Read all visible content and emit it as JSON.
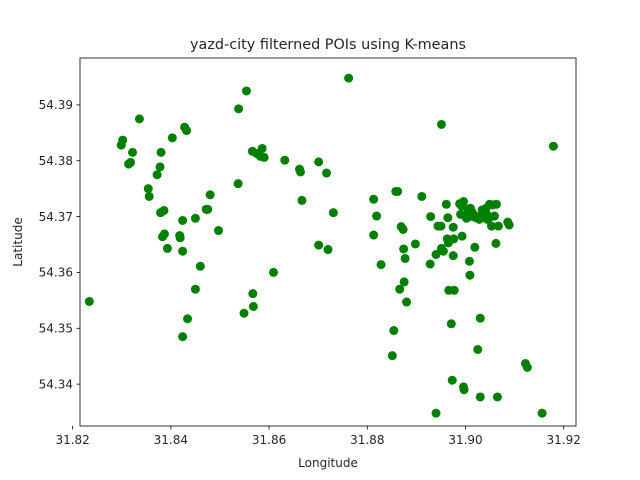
{
  "chart_data": {
    "type": "scatter",
    "title": "yazd-city filterned POIs using K-means",
    "xlabel": "Longitude",
    "ylabel": "Latitude",
    "xlim": [
      31.8215,
      31.9225
    ],
    "ylim": [
      54.3325,
      54.3984
    ],
    "xticks": [
      31.82,
      31.84,
      31.86,
      31.88,
      31.9,
      31.92
    ],
    "xtick_labels": [
      "31.82",
      "31.84",
      "31.86",
      "31.88",
      "31.90",
      "31.92"
    ],
    "yticks": [
      54.34,
      54.35,
      54.36,
      54.37,
      54.38,
      54.39
    ],
    "ytick_labels": [
      "54.34",
      "54.35",
      "54.36",
      "54.37",
      "54.38",
      "54.39"
    ],
    "grid": false,
    "marker_color": "#008000",
    "points": [
      [
        31.8234,
        54.3548
      ],
      [
        31.8299,
        54.3828
      ],
      [
        31.8302,
        54.3837
      ],
      [
        31.8314,
        54.3794
      ],
      [
        31.8318,
        54.3797
      ],
      [
        31.8322,
        54.3815
      ],
      [
        31.8336,
        54.3875
      ],
      [
        31.8354,
        54.375
      ],
      [
        31.8356,
        54.3736
      ],
      [
        31.8372,
        54.3775
      ],
      [
        31.8378,
        54.3789
      ],
      [
        31.838,
        54.3815
      ],
      [
        31.8379,
        54.3707
      ],
      [
        31.8386,
        54.3711
      ],
      [
        31.8383,
        54.3664
      ],
      [
        31.8387,
        54.3669
      ],
      [
        31.8393,
        54.3643
      ],
      [
        31.8403,
        54.3841
      ],
      [
        31.8418,
        54.3666
      ],
      [
        31.8419,
        54.3662
      ],
      [
        31.8428,
        54.386
      ],
      [
        31.8432,
        54.3854
      ],
      [
        31.8424,
        54.3693
      ],
      [
        31.8424,
        54.3638
      ],
      [
        31.8424,
        54.3485
      ],
      [
        31.8434,
        54.3517
      ],
      [
        31.845,
        54.3697
      ],
      [
        31.845,
        54.357
      ],
      [
        31.846,
        54.3611
      ],
      [
        31.8472,
        54.3713
      ],
      [
        31.8475,
        54.3713
      ],
      [
        31.848,
        54.3739
      ],
      [
        31.8497,
        54.3675
      ],
      [
        31.8538,
        54.3893
      ],
      [
        31.8537,
        54.3759
      ],
      [
        31.8549,
        54.3527
      ],
      [
        31.8554,
        54.3925
      ],
      [
        31.8566,
        54.3817
      ],
      [
        31.8567,
        54.3562
      ],
      [
        31.8568,
        54.3539
      ],
      [
        31.8575,
        54.3813
      ],
      [
        31.8582,
        54.3808
      ],
      [
        31.8586,
        54.3822
      ],
      [
        31.859,
        54.3806
      ],
      [
        31.8609,
        54.36
      ],
      [
        31.8632,
        54.3801
      ],
      [
        31.8662,
        54.3785
      ],
      [
        31.8664,
        54.378
      ],
      [
        31.8667,
        54.3729
      ],
      [
        31.8701,
        54.3798
      ],
      [
        31.8701,
        54.3649
      ],
      [
        31.8717,
        54.3778
      ],
      [
        31.872,
        54.3641
      ],
      [
        31.8731,
        54.3707
      ],
      [
        31.8762,
        54.3948
      ],
      [
        31.8813,
        54.3731
      ],
      [
        31.8813,
        54.3667
      ],
      [
        31.8819,
        54.3701
      ],
      [
        31.8828,
        54.3614
      ],
      [
        31.8851,
        54.3451
      ],
      [
        31.8854,
        54.3496
      ],
      [
        31.8858,
        54.3745
      ],
      [
        31.8862,
        54.3745
      ],
      [
        31.8866,
        54.357
      ],
      [
        31.8869,
        54.3682
      ],
      [
        31.8873,
        54.3677
      ],
      [
        31.8874,
        54.3642
      ],
      [
        31.8875,
        54.3583
      ],
      [
        31.8877,
        54.3625
      ],
      [
        31.888,
        54.3547
      ],
      [
        31.8898,
        54.3651
      ],
      [
        31.8911,
        54.3736
      ],
      [
        31.8928,
        54.3615
      ],
      [
        31.8929,
        54.37
      ],
      [
        31.894,
        54.3632
      ],
      [
        31.894,
        54.3348
      ],
      [
        31.8944,
        54.3683
      ],
      [
        31.8951,
        54.3865
      ],
      [
        31.895,
        54.3683
      ],
      [
        31.8951,
        54.3643
      ],
      [
        31.8955,
        54.3638
      ],
      [
        31.8961,
        54.3722
      ],
      [
        31.8964,
        54.3698
      ],
      [
        31.8963,
        54.366
      ],
      [
        31.8965,
        54.3653
      ],
      [
        31.8966,
        54.3568
      ],
      [
        31.8971,
        54.3508
      ],
      [
        31.8973,
        54.3407
      ],
      [
        31.8975,
        54.3681
      ],
      [
        31.8976,
        54.366
      ],
      [
        31.8975,
        54.363
      ],
      [
        31.8977,
        54.3568
      ],
      [
        31.8988,
        54.3723
      ],
      [
        31.899,
        54.3704
      ],
      [
        31.8992,
        54.3719
      ],
      [
        31.8993,
        54.3665
      ],
      [
        31.8996,
        54.3727
      ],
      [
        31.8996,
        54.3395
      ],
      [
        31.8997,
        54.339
      ],
      [
        31.9,
        54.3703
      ],
      [
        31.9002,
        54.3697
      ],
      [
        31.9005,
        54.3713
      ],
      [
        31.9007,
        54.37
      ],
      [
        31.9008,
        54.362
      ],
      [
        31.9009,
        54.3595
      ],
      [
        31.901,
        54.3715
      ],
      [
        31.9014,
        54.3707
      ],
      [
        31.9016,
        54.3702
      ],
      [
        31.9016,
        54.37
      ],
      [
        31.9019,
        54.3645
      ],
      [
        31.9021,
        54.3698
      ],
      [
        31.9024,
        54.37
      ],
      [
        31.9025,
        54.3462
      ],
      [
        31.9028,
        54.3695
      ],
      [
        31.903,
        54.3518
      ],
      [
        31.903,
        54.3377
      ],
      [
        31.9034,
        54.3712
      ],
      [
        31.9036,
        54.3707
      ],
      [
        31.9039,
        54.37
      ],
      [
        31.9042,
        54.3715
      ],
      [
        31.9043,
        54.3704
      ],
      [
        31.9044,
        54.3695
      ],
      [
        31.9049,
        54.3722
      ],
      [
        31.905,
        54.3699
      ],
      [
        31.9053,
        54.3683
      ],
      [
        31.9056,
        54.3721
      ],
      [
        31.9059,
        54.3701
      ],
      [
        31.9062,
        54.3652
      ],
      [
        31.9063,
        54.3722
      ],
      [
        31.9065,
        54.3377
      ],
      [
        31.9067,
        54.3683
      ],
      [
        31.9086,
        54.369
      ],
      [
        31.9089,
        54.3685
      ],
      [
        31.9122,
        54.3437
      ],
      [
        31.9126,
        54.343
      ],
      [
        31.9156,
        54.3348
      ],
      [
        31.9179,
        54.3826
      ]
    ]
  }
}
